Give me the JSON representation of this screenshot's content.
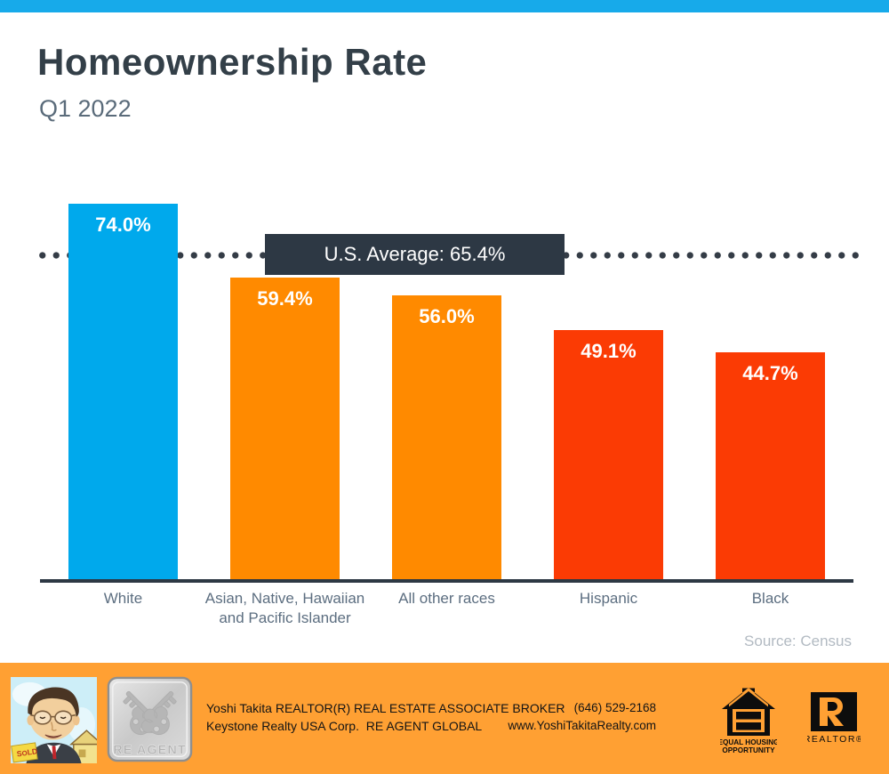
{
  "header": {
    "title": "Homeownership Rate",
    "subtitle": "Q1 2022"
  },
  "chart_data": {
    "type": "bar",
    "title": "Homeownership Rate",
    "subtitle": "Q1 2022",
    "categories": [
      "White",
      "Asian, Native, Hawaiian and Pacific Islander",
      "All other races",
      "Hispanic",
      "Black"
    ],
    "values": [
      74.0,
      59.4,
      56.0,
      49.1,
      44.7
    ],
    "value_labels": [
      "74.0%",
      "59.4%",
      "56.0%",
      "49.1%",
      "44.7%"
    ],
    "bar_colors": [
      "#00A9EC",
      "#FF8A00",
      "#FF8A00",
      "#FB3B04",
      "#FB3B04"
    ],
    "average": {
      "value": 65.4,
      "label": "U.S. Average: 65.4%"
    },
    "ylim": [
      0,
      74
    ],
    "xlabel": "",
    "ylabel": "",
    "grid": false,
    "legend": false,
    "source": "Source: Census"
  },
  "theme": {
    "top_bar_color": "#17AAEA",
    "axis_color": "#2D3844",
    "average_box_color": "#2D3844",
    "footer_color": "#FFA033"
  },
  "footer": {
    "line1": "Yoshi Takita REALTOR(R) REAL ESTATE ASSOCIATE BROKER",
    "line2": "Keystone Realty USA Corp.  RE AGENT GLOBAL",
    "phone": "(646) 529-2168",
    "website": "www.YoshiTakitaRealty.com",
    "badge_label": "RE AGENT",
    "portrait_alt": "agent-caricature",
    "sold_sign": "SOLD",
    "eho_line1": "EQUAL HOUSING",
    "eho_line2": "OPPORTUNITY",
    "realtor_label": "REALTOR®"
  }
}
